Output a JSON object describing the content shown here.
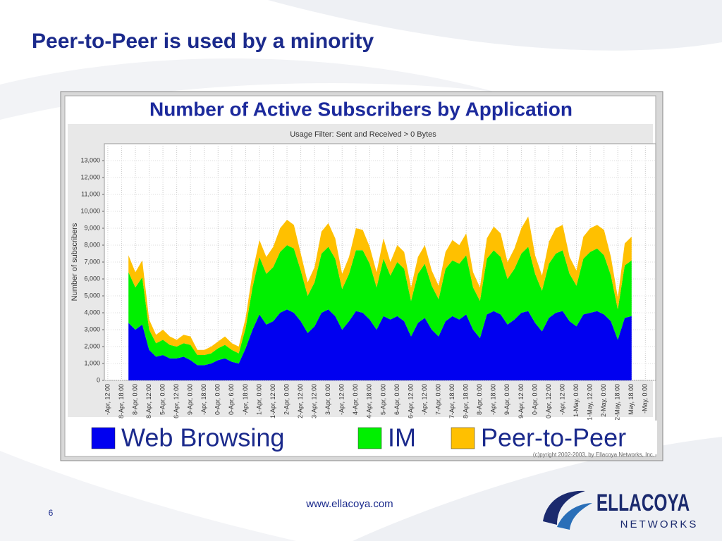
{
  "slide_title": "Peer-to-Peer is used by a minority",
  "chart_data": {
    "type": "stacked-area",
    "title": "Number of Active Subscribers by Application",
    "subtitle": "Usage Filter: Sent and Received > 0 Bytes",
    "ylabel": "Number of subscribers",
    "copyright": "(c)pyright 2002-2003, by Ellacoya Networks, Inc.",
    "ylim": [
      0,
      14000
    ],
    "yticks": [
      0,
      {
        "value": 1000,
        "label": "1,000"
      },
      {
        "value": 2000,
        "label": "2,000"
      },
      {
        "value": 3000,
        "label": "3,000"
      },
      {
        "value": 4000,
        "label": "4,000"
      },
      {
        "value": 5000,
        "label": "5,000"
      },
      {
        "value": 6000,
        "label": "6,000"
      },
      {
        "value": 7000,
        "label": "7,000"
      },
      {
        "value": 8000,
        "label": "8,000"
      },
      {
        "value": 9000,
        "label": "9,000"
      },
      {
        "value": 10000,
        "label": "10,000"
      },
      {
        "value": 11000,
        "label": "11,000"
      },
      {
        "value": 12000,
        "label": "12,000"
      },
      {
        "value": 13000,
        "label": "13,000"
      }
    ],
    "grid": true,
    "categories": [
      "-Apr, 12:00",
      null,
      "8-Apr, 18:00",
      null,
      "8-Apr, 0:00",
      null,
      "8-Apr, 12:00",
      null,
      "5-Apr, 0:00",
      null,
      "6-Apr, 12:00",
      null,
      "9-Apr, 0:00",
      null,
      "-Apr, 18:00",
      null,
      "0-Apr, 0:00",
      null,
      "0-Apr, 6:00",
      null,
      "-Apr, 18:00",
      null,
      "1-Apr, 0:00",
      null,
      "1-Apr, 12:00",
      null,
      "2-Apr, 0:00",
      null,
      "2-Apr, 12:00",
      null,
      "3-Apr, 12:00",
      null,
      "3-Apr, 0:00",
      null,
      "-Apr, 12:00",
      null,
      "4-Apr, 0:00",
      null,
      "4-Apr, 18:00",
      null,
      "5-Apr, 0:00",
      null,
      "6-Apr, 0:00",
      null,
      "6-Apr, 12:00",
      null,
      "-Apr, 12:00",
      null,
      "7-Apr, 0:00",
      null,
      "7-Apr, 18:00",
      null,
      "8-Apr, 18:00",
      null,
      "8-Apr, 0:00",
      null,
      "-Apr, 18:00",
      null,
      "9-Apr, 0:00",
      null,
      "9-Apr, 12:00",
      null,
      "0-Apr, 0:00",
      null,
      "0-Apr, 12:00",
      null,
      "-Apr, 12:00",
      null,
      "1-May, 0:00",
      null,
      "1-May, 12:00",
      null,
      "2-May, 0:00",
      null,
      "2-May, 18:00",
      null,
      "May, 18:00",
      null,
      "-May, 0:00",
      null
    ],
    "series": [
      {
        "name": "Web Browsing",
        "color": "#0000f0",
        "values": [
          null,
          null,
          null,
          3400,
          3000,
          3300,
          1800,
          1400,
          1500,
          1300,
          1300,
          1400,
          1200,
          900,
          900,
          1000,
          1200,
          1300,
          1100,
          1000,
          1900,
          3000,
          3900,
          3300,
          3500,
          4000,
          4200,
          4000,
          3500,
          2800,
          3200,
          4000,
          4200,
          3800,
          3000,
          3500,
          4100,
          4000,
          3600,
          3000,
          3800,
          3600,
          3800,
          3500,
          2600,
          3400,
          3700,
          3000,
          2600,
          3500,
          3800,
          3600,
          3900,
          3000,
          2500,
          3900,
          4100,
          3900,
          3300,
          3600,
          4000,
          4100,
          3400,
          2900,
          3700,
          4000,
          4100,
          3500,
          3200,
          3900,
          4000,
          4100,
          3900,
          3500,
          2400,
          3700,
          3800,
          null,
          null,
          null
        ]
      },
      {
        "name": "IM",
        "color": "#00f000",
        "values": [
          null,
          null,
          null,
          3000,
          2500,
          2800,
          1200,
          800,
          900,
          800,
          700,
          800,
          900,
          600,
          600,
          600,
          700,
          800,
          700,
          600,
          1200,
          2500,
          3400,
          3000,
          3200,
          3600,
          3800,
          3800,
          3000,
          2200,
          2600,
          3500,
          3700,
          3400,
          2400,
          2800,
          3600,
          3700,
          3300,
          2500,
          3400,
          2600,
          3200,
          3100,
          2100,
          2900,
          3200,
          2600,
          2200,
          3100,
          3300,
          3300,
          3500,
          2500,
          2200,
          3300,
          3600,
          3400,
          2700,
          3000,
          3500,
          3800,
          2900,
          2400,
          3200,
          3500,
          3600,
          2800,
          2400,
          3300,
          3600,
          3700,
          3500,
          2700,
          1800,
          3100,
          3300,
          null,
          null,
          null
        ]
      },
      {
        "name": "Peer-to-Peer",
        "color": "#ffc000",
        "values": [
          null,
          null,
          null,
          1000,
          900,
          1000,
          600,
          500,
          600,
          500,
          400,
          500,
          500,
          300,
          300,
          400,
          400,
          500,
          400,
          400,
          600,
          900,
          1000,
          1000,
          1200,
          1400,
          1500,
          1400,
          1000,
          800,
          900,
          1300,
          1400,
          1200,
          900,
          1000,
          1300,
          1200,
          1000,
          900,
          1200,
          800,
          1000,
          1000,
          800,
          1000,
          1100,
          900,
          800,
          1000,
          1200,
          1100,
          1300,
          900,
          800,
          1200,
          1400,
          1400,
          1000,
          1200,
          1500,
          1800,
          1100,
          900,
          1300,
          1500,
          1500,
          1000,
          900,
          1300,
          1400,
          1400,
          1500,
          1100,
          700,
          1300,
          1400,
          null,
          null,
          null
        ]
      }
    ]
  },
  "footer": {
    "url": "www.ellacoya.com",
    "page": "6",
    "logo": "ELLACOYA",
    "logo_sub": "NETWORKS"
  }
}
